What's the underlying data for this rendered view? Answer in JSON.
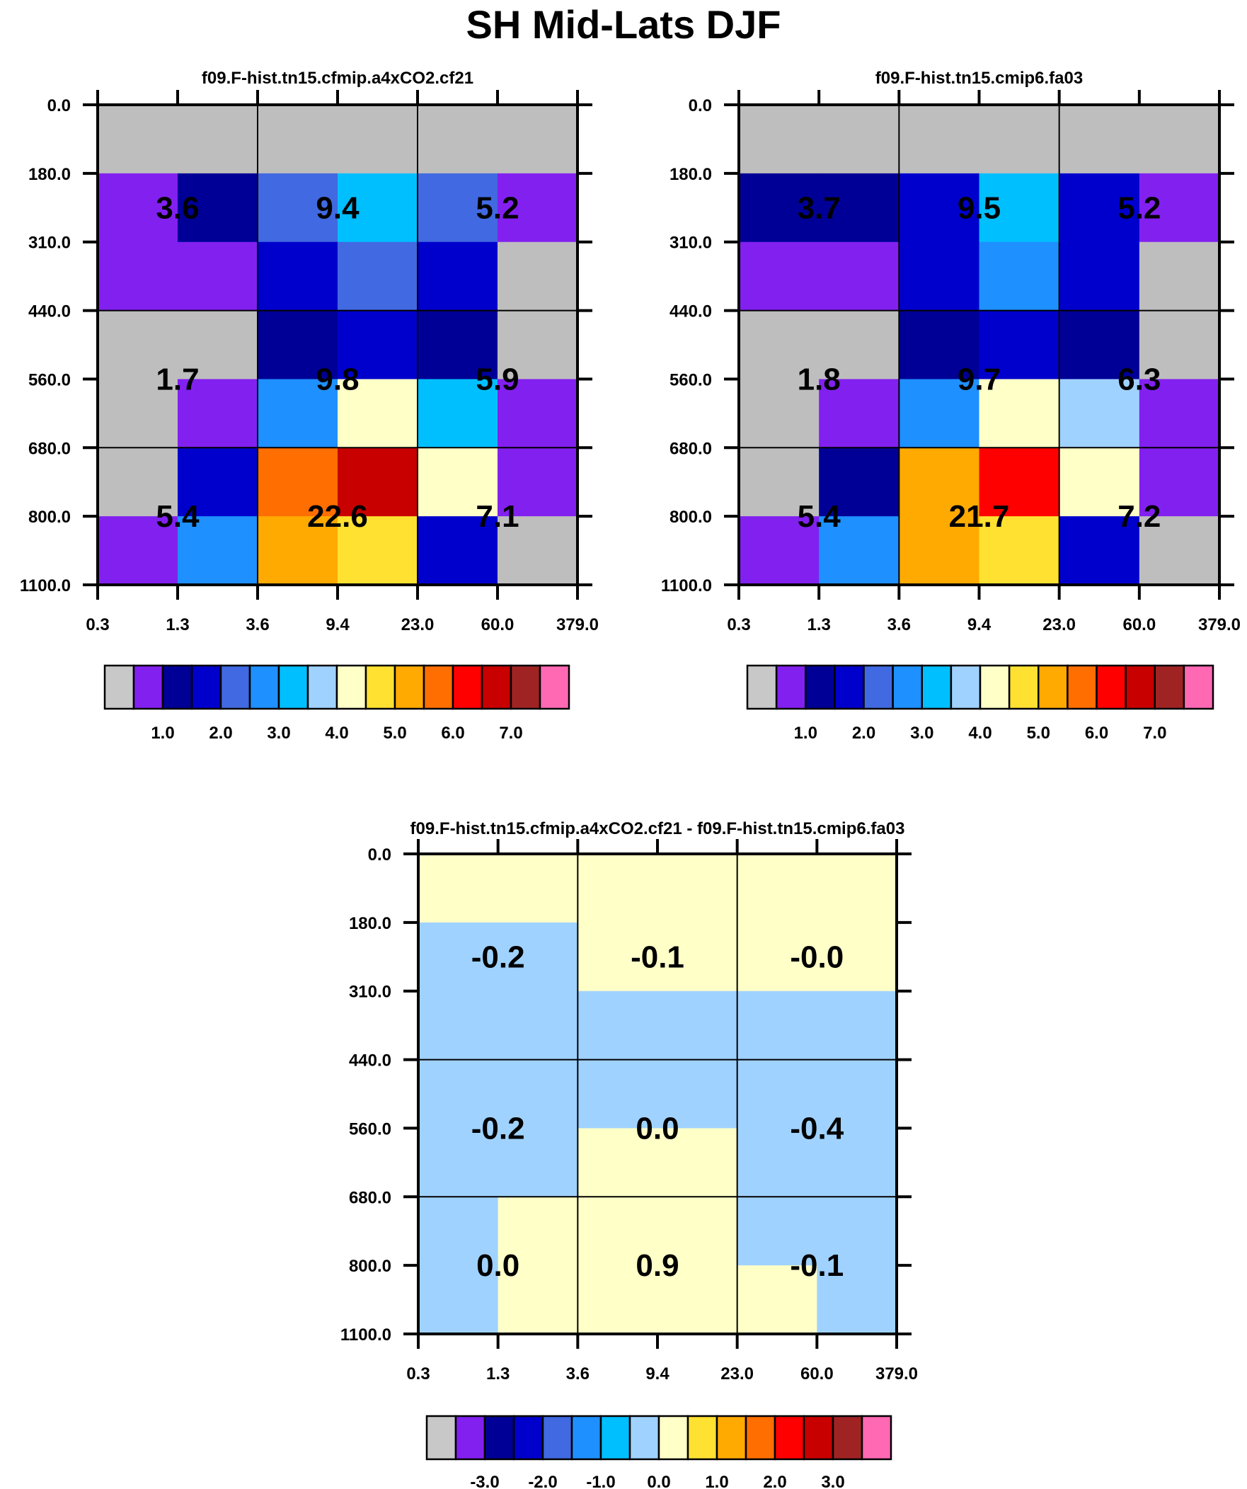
{
  "title": "SH Mid-Lats DJF",
  "palette": [
    "#c8c8c8",
    "#8220f0",
    "#000096",
    "#0000cd",
    "#4169e1",
    "#1e90ff",
    "#00bfff",
    "#a0d2ff",
    "#ffffc8",
    "#ffe132",
    "#ffaa00",
    "#ff6e00",
    "#ff0000",
    "#c80000",
    "#a02323",
    "#ff69b4"
  ],
  "missing_color": "#bebebe",
  "chart_data": [
    {
      "type": "heatmap",
      "title": "f09.F-hist.tn15.cfmip.a4xCO2.cf21",
      "x_ticks": [
        "0.3",
        "1.3",
        "3.6",
        "9.4",
        "23.0",
        "60.0",
        "379.0"
      ],
      "y_ticks": [
        "0.0",
        "180.0",
        "310.0",
        "440.0",
        "560.0",
        "680.0",
        "800.0",
        "1100.0"
      ],
      "cell_color_index": [
        [
          0,
          0,
          0,
          0,
          0,
          0
        ],
        [
          1,
          2,
          4,
          6,
          4,
          1
        ],
        [
          1,
          1,
          3,
          4,
          3,
          0
        ],
        [
          0,
          0,
          2,
          3,
          2,
          0
        ],
        [
          0,
          1,
          5,
          8,
          6,
          1
        ],
        [
          0,
          3,
          11,
          13,
          8,
          1
        ],
        [
          1,
          5,
          10,
          9,
          3,
          0
        ]
      ],
      "block_values": [
        [
          "3.6",
          "9.4",
          "5.2"
        ],
        [
          "1.7",
          "9.8",
          "5.9"
        ],
        [
          "5.4",
          "22.6",
          "7.1"
        ]
      ],
      "colorbar_labels": [
        "1.0",
        "2.0",
        "3.0",
        "4.0",
        "5.0",
        "6.0",
        "7.0"
      ]
    },
    {
      "type": "heatmap",
      "title": "f09.F-hist.tn15.cmip6.fa03",
      "x_ticks": [
        "0.3",
        "1.3",
        "3.6",
        "9.4",
        "23.0",
        "60.0",
        "379.0"
      ],
      "y_ticks": [
        "0.0",
        "180.0",
        "310.0",
        "440.0",
        "560.0",
        "680.0",
        "800.0",
        "1100.0"
      ],
      "cell_color_index": [
        [
          0,
          0,
          0,
          0,
          0,
          0
        ],
        [
          2,
          2,
          3,
          6,
          3,
          1
        ],
        [
          1,
          1,
          3,
          5,
          3,
          0
        ],
        [
          0,
          0,
          2,
          3,
          2,
          0
        ],
        [
          0,
          1,
          5,
          8,
          7,
          1
        ],
        [
          0,
          2,
          10,
          12,
          8,
          1
        ],
        [
          1,
          5,
          10,
          9,
          3,
          0
        ]
      ],
      "block_values": [
        [
          "3.7",
          "9.5",
          "5.2"
        ],
        [
          "1.8",
          "9.7",
          "6.3"
        ],
        [
          "5.4",
          "21.7",
          "7.2"
        ]
      ],
      "colorbar_labels": [
        "1.0",
        "2.0",
        "3.0",
        "4.0",
        "5.0",
        "6.0",
        "7.0"
      ]
    },
    {
      "type": "heatmap",
      "title": "f09.F-hist.tn15.cfmip.a4xCO2.cf21 - f09.F-hist.tn15.cmip6.fa03",
      "x_ticks": [
        "0.3",
        "1.3",
        "3.6",
        "9.4",
        "23.0",
        "60.0",
        "379.0"
      ],
      "y_ticks": [
        "0.0",
        "180.0",
        "310.0",
        "440.0",
        "560.0",
        "680.0",
        "800.0",
        "1100.0"
      ],
      "cell_color_index": [
        [
          8,
          8,
          8,
          8,
          8,
          8
        ],
        [
          7,
          7,
          8,
          8,
          8,
          8
        ],
        [
          7,
          7,
          7,
          7,
          7,
          7
        ],
        [
          7,
          7,
          7,
          7,
          7,
          7
        ],
        [
          7,
          7,
          8,
          8,
          7,
          7
        ],
        [
          7,
          8,
          8,
          8,
          7,
          7
        ],
        [
          7,
          8,
          8,
          8,
          8,
          7
        ]
      ],
      "block_values": [
        [
          "-0.2",
          "-0.1",
          "-0.0"
        ],
        [
          "-0.2",
          "0.0",
          "-0.4"
        ],
        [
          "0.0",
          "0.9",
          "-0.1"
        ]
      ],
      "colorbar_labels": [
        "-3.0",
        "-2.0",
        "-1.0",
        "0.0",
        "1.0",
        "2.0",
        "3.0"
      ]
    }
  ]
}
